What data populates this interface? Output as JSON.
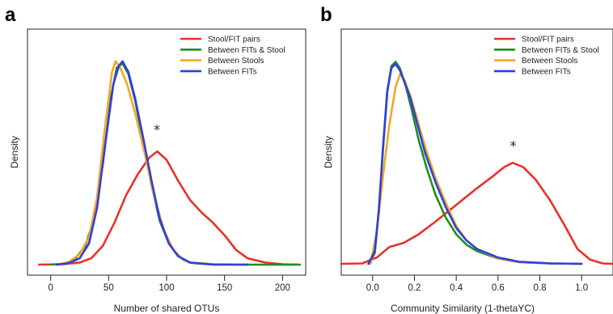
{
  "chart_data": [
    {
      "type": "line",
      "panel_letter": "a",
      "xlabel": "Number of shared OTUs",
      "ylabel": "Density",
      "xlim": [
        -20,
        220
      ],
      "ylim": [
        0,
        1.0
      ],
      "x_ticks": [
        0,
        50,
        100,
        150,
        200
      ],
      "y_ticks_shown": false,
      "legend_position": "top-right",
      "annotation": {
        "text": "*",
        "x": 93,
        "y": 0.6
      },
      "series": [
        {
          "name": "Stool/FIT pairs",
          "color": "#e8312a",
          "points": [
            [
              -10,
              0
            ],
            [
              10,
              0.002
            ],
            [
              25,
              0.01
            ],
            [
              35,
              0.03
            ],
            [
              45,
              0.09
            ],
            [
              55,
              0.2
            ],
            [
              65,
              0.33
            ],
            [
              75,
              0.43
            ],
            [
              85,
              0.51
            ],
            [
              92,
              0.54
            ],
            [
              100,
              0.5
            ],
            [
              110,
              0.4
            ],
            [
              120,
              0.31
            ],
            [
              130,
              0.25
            ],
            [
              140,
              0.2
            ],
            [
              150,
              0.14
            ],
            [
              160,
              0.07
            ],
            [
              170,
              0.03
            ],
            [
              185,
              0.01
            ],
            [
              200,
              0.002
            ],
            [
              215,
              0
            ]
          ]
        },
        {
          "name": "Between FITs & Stool",
          "color": "#1f8e1f",
          "points": [
            [
              0,
              0
            ],
            [
              10,
              0.004
            ],
            [
              20,
              0.02
            ],
            [
              30,
              0.09
            ],
            [
              38,
              0.23
            ],
            [
              45,
              0.48
            ],
            [
              52,
              0.8
            ],
            [
              57,
              0.94
            ],
            [
              62,
              0.96
            ],
            [
              67,
              0.91
            ],
            [
              73,
              0.78
            ],
            [
              80,
              0.58
            ],
            [
              87,
              0.38
            ],
            [
              94,
              0.21
            ],
            [
              102,
              0.1
            ],
            [
              110,
              0.04
            ],
            [
              120,
              0.01
            ],
            [
              140,
              0.002
            ],
            [
              170,
              0
            ],
            [
              215,
              0
            ]
          ]
        },
        {
          "name": "Between Stools",
          "color": "#f5a623",
          "points": [
            [
              5,
              0
            ],
            [
              15,
              0.01
            ],
            [
              25,
              0.05
            ],
            [
              33,
              0.13
            ],
            [
              40,
              0.32
            ],
            [
              47,
              0.66
            ],
            [
              53,
              0.92
            ],
            [
              56,
              0.97
            ],
            [
              60,
              0.94
            ],
            [
              66,
              0.86
            ],
            [
              73,
              0.72
            ],
            [
              82,
              0.51
            ],
            [
              90,
              0.31
            ],
            [
              98,
              0.16
            ],
            [
              106,
              0.07
            ],
            [
              115,
              0.02
            ],
            [
              125,
              0.005
            ],
            [
              145,
              0
            ],
            [
              170,
              0
            ]
          ]
        },
        {
          "name": "Between FITs",
          "color": "#2f3fe0",
          "points": [
            [
              5,
              0
            ],
            [
              15,
              0.006
            ],
            [
              25,
              0.03
            ],
            [
              33,
              0.1
            ],
            [
              40,
              0.27
            ],
            [
              47,
              0.57
            ],
            [
              54,
              0.86
            ],
            [
              59,
              0.95
            ],
            [
              62,
              0.97
            ],
            [
              67,
              0.92
            ],
            [
              73,
              0.79
            ],
            [
              80,
              0.6
            ],
            [
              87,
              0.4
            ],
            [
              94,
              0.22
            ],
            [
              102,
              0.1
            ],
            [
              110,
              0.04
            ],
            [
              120,
              0.01
            ],
            [
              140,
              0
            ],
            [
              170,
              0
            ]
          ]
        }
      ]
    },
    {
      "type": "line",
      "panel_letter": "b",
      "xlabel": "Community Similarity (1-thetaYC)",
      "ylabel": "Density",
      "xlim": [
        -0.15,
        1.15
      ],
      "ylim": [
        0,
        1.0
      ],
      "x_ticks": [
        0.0,
        0.2,
        0.4,
        0.6,
        0.8,
        1.0
      ],
      "y_ticks_shown": false,
      "legend_position": "top-right",
      "annotation": {
        "text": "*",
        "x": 0.68,
        "y": 0.51
      },
      "series": [
        {
          "name": "Stool/FIT pairs",
          "color": "#e8312a",
          "points": [
            [
              -0.15,
              0
            ],
            [
              -0.05,
              0.002
            ],
            [
              0.02,
              0.03
            ],
            [
              0.08,
              0.08
            ],
            [
              0.15,
              0.1
            ],
            [
              0.22,
              0.14
            ],
            [
              0.3,
              0.2
            ],
            [
              0.4,
              0.28
            ],
            [
              0.5,
              0.36
            ],
            [
              0.58,
              0.42
            ],
            [
              0.63,
              0.46
            ],
            [
              0.67,
              0.48
            ],
            [
              0.72,
              0.46
            ],
            [
              0.78,
              0.4
            ],
            [
              0.85,
              0.3
            ],
            [
              0.92,
              0.18
            ],
            [
              0.98,
              0.07
            ],
            [
              1.04,
              0.02
            ],
            [
              1.1,
              0.002
            ],
            [
              1.15,
              0
            ]
          ]
        },
        {
          "name": "Between FITs & Stool",
          "color": "#1f8e1f",
          "points": [
            [
              -0.02,
              0
            ],
            [
              0.01,
              0.05
            ],
            [
              0.03,
              0.25
            ],
            [
              0.05,
              0.55
            ],
            [
              0.07,
              0.82
            ],
            [
              0.09,
              0.94
            ],
            [
              0.11,
              0.96
            ],
            [
              0.13,
              0.93
            ],
            [
              0.16,
              0.84
            ],
            [
              0.19,
              0.72
            ],
            [
              0.22,
              0.59
            ],
            [
              0.26,
              0.45
            ],
            [
              0.3,
              0.33
            ],
            [
              0.35,
              0.22
            ],
            [
              0.4,
              0.14
            ],
            [
              0.45,
              0.09
            ],
            [
              0.5,
              0.06
            ],
            [
              0.6,
              0.025
            ],
            [
              0.7,
              0.008
            ],
            [
              0.85,
              0.002
            ],
            [
              1.0,
              0
            ]
          ]
        },
        {
          "name": "Between Stools",
          "color": "#f5a623",
          "points": [
            [
              -0.01,
              0
            ],
            [
              0.02,
              0.15
            ],
            [
              0.05,
              0.42
            ],
            [
              0.08,
              0.66
            ],
            [
              0.11,
              0.84
            ],
            [
              0.13,
              0.9
            ],
            [
              0.15,
              0.88
            ],
            [
              0.18,
              0.8
            ],
            [
              0.21,
              0.7
            ],
            [
              0.25,
              0.56
            ],
            [
              0.3,
              0.41
            ],
            [
              0.35,
              0.29
            ],
            [
              0.4,
              0.18
            ],
            [
              0.45,
              0.11
            ],
            [
              0.5,
              0.07
            ],
            [
              0.6,
              0.025
            ],
            [
              0.7,
              0.008
            ],
            [
              0.85,
              0.002
            ],
            [
              1.0,
              0
            ]
          ]
        },
        {
          "name": "Between FITs",
          "color": "#2f3fe0",
          "points": [
            [
              -0.02,
              0
            ],
            [
              0.01,
              0.06
            ],
            [
              0.03,
              0.26
            ],
            [
              0.05,
              0.56
            ],
            [
              0.07,
              0.82
            ],
            [
              0.09,
              0.93
            ],
            [
              0.11,
              0.95
            ],
            [
              0.13,
              0.92
            ],
            [
              0.15,
              0.87
            ],
            [
              0.18,
              0.79
            ],
            [
              0.21,
              0.68
            ],
            [
              0.25,
              0.53
            ],
            [
              0.3,
              0.39
            ],
            [
              0.35,
              0.27
            ],
            [
              0.4,
              0.17
            ],
            [
              0.45,
              0.11
            ],
            [
              0.5,
              0.07
            ],
            [
              0.55,
              0.05
            ],
            [
              0.6,
              0.03
            ],
            [
              0.7,
              0.01
            ],
            [
              0.85,
              0.002
            ],
            [
              1.0,
              0
            ]
          ]
        }
      ]
    }
  ]
}
